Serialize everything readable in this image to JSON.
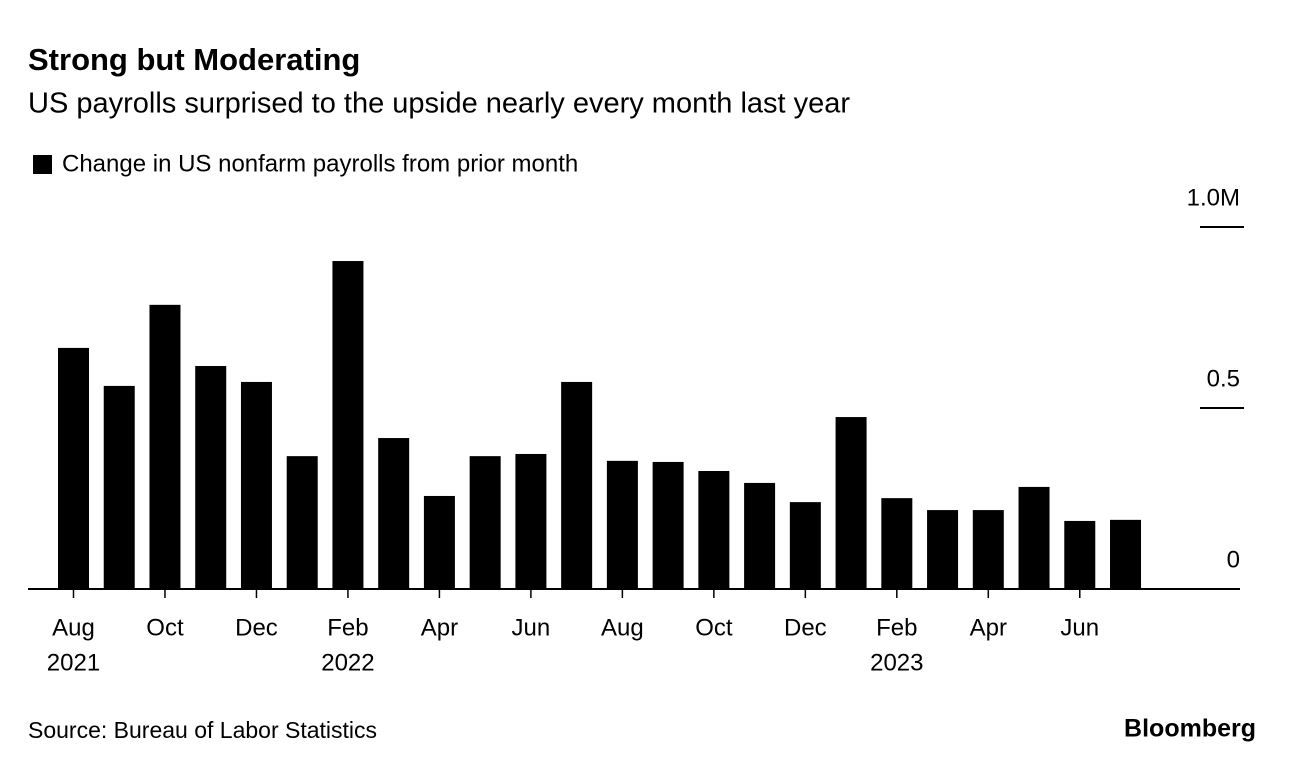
{
  "chart_data": {
    "type": "bar",
    "title": "Strong but Moderating",
    "subtitle": "US payrolls surprised to the upside nearly every month last year",
    "legend": "Change in US nonfarm payrolls from prior month",
    "source": "Source: Bureau of Labor Statistics",
    "brand": "Bloomberg",
    "categories": [
      "Aug",
      null,
      "Oct",
      null,
      "Dec",
      null,
      "Feb",
      null,
      "Apr",
      null,
      "Jun",
      null,
      "Aug",
      null,
      "Oct",
      null,
      "Dec",
      null,
      "Feb",
      null,
      "Apr",
      null,
      "Jun",
      null
    ],
    "year_labels": [
      "2021",
      null,
      null,
      null,
      null,
      null,
      "2022",
      null,
      null,
      null,
      null,
      null,
      null,
      null,
      null,
      null,
      null,
      null,
      "2023",
      null,
      null,
      null,
      null,
      null
    ],
    "values": [
      0.666,
      0.561,
      0.785,
      0.616,
      0.572,
      0.367,
      0.906,
      0.417,
      0.257,
      0.367,
      0.373,
      0.572,
      0.354,
      0.351,
      0.326,
      0.293,
      0.24,
      0.475,
      0.251,
      0.218,
      0.218,
      0.282,
      0.188,
      0.191
    ],
    "color": "#000000",
    "ylim": [
      0,
      1
    ],
    "yticks": [
      0,
      0.5,
      {
        "value": 1,
        "label": "1.0M"
      }
    ]
  }
}
